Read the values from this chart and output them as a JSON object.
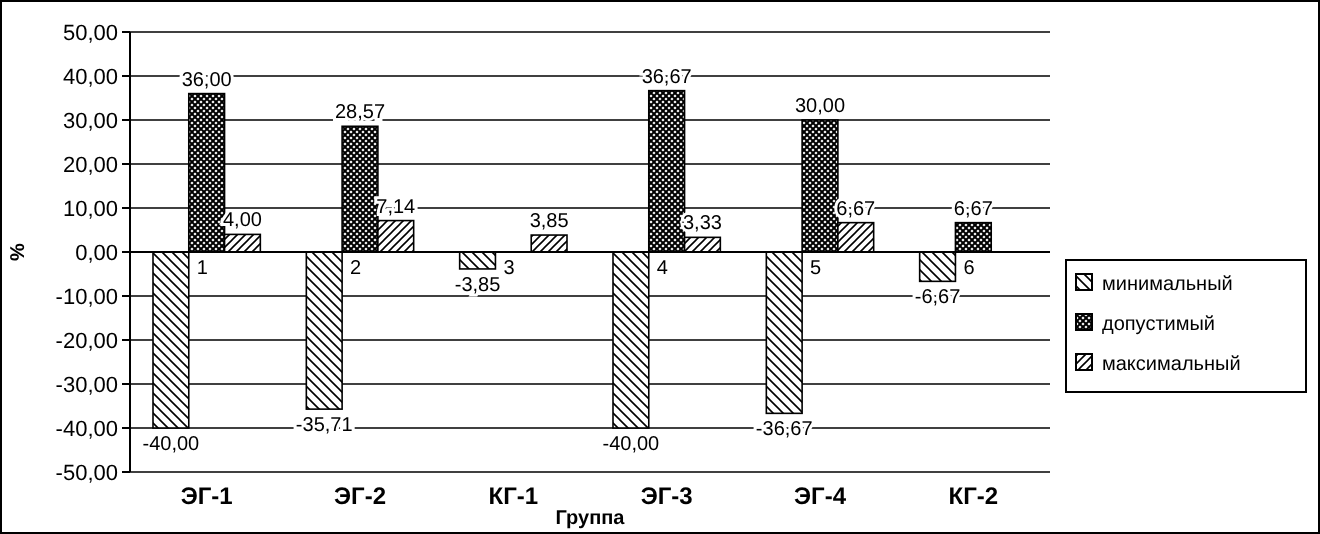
{
  "chart_data": {
    "type": "bar",
    "xlabel": "Группа",
    "ylabel": "%",
    "categories": [
      "ЭГ-1",
      "ЭГ-2",
      "КГ-1",
      "ЭГ-3",
      "ЭГ-4",
      "КГ-2"
    ],
    "series": [
      {
        "name": "минимальный",
        "color": "#000000",
        "values": [
          -40,
          -35.71,
          -3.85,
          -40,
          -36.67,
          -6.67
        ],
        "value_labels": [
          "-40,00",
          "-35,71",
          "-3,85",
          "-40,00",
          "-36,67",
          "-6,67"
        ]
      },
      {
        "name": "допустимый",
        "color": "#000000",
        "values": [
          36,
          28.57,
          null,
          36.67,
          30,
          6.67
        ],
        "value_labels": [
          "36,00",
          "28,57",
          null,
          "36,67",
          "30,00",
          "6,67"
        ]
      },
      {
        "name": "максимальный",
        "color": "#000000",
        "values": [
          4,
          7.14,
          3.85,
          3.33,
          6.67,
          null
        ],
        "value_labels": [
          "4,00",
          "7,14",
          "3,85",
          "3,33",
          "6,67",
          null
        ]
      }
    ],
    "ylim": [
      -50,
      50
    ],
    "yticks": [
      {
        "value": -50,
        "label": "-50,00"
      },
      {
        "value": -40,
        "label": "-40,00"
      },
      {
        "value": -30,
        "label": "-30,00"
      },
      {
        "value": -20,
        "label": "-20,00"
      },
      {
        "value": -10,
        "label": "-10,00"
      },
      {
        "value": 0,
        "label": "0,00"
      },
      {
        "value": 10,
        "label": "10,00"
      },
      {
        "value": 20,
        "label": "20,00"
      },
      {
        "value": 30,
        "label": "30,00"
      },
      {
        "value": 40,
        "label": "40,00"
      },
      {
        "value": 50,
        "label": "50,00"
      }
    ],
    "grid": "y",
    "legend": "right",
    "annotations": [
      "1",
      "2",
      "3",
      "4",
      "5",
      "6"
    ]
  }
}
